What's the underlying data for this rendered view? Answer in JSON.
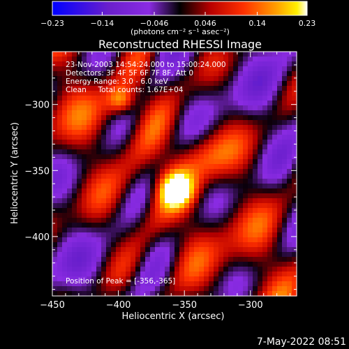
{
  "chart_data": {
    "type": "heatmap",
    "title": "Reconstructed RHESSI Image",
    "xlabel": "Heliocentric X (arcsec)",
    "ylabel": "Heliocentric Y (arcsec)",
    "xlim": [
      -450,
      -265
    ],
    "ylim": [
      -445,
      -260
    ],
    "x_ticks": [
      "−450",
      "−400",
      "−350",
      "−300"
    ],
    "x_tick_values": [
      -450,
      -400,
      -350,
      -300
    ],
    "y_ticks": [
      "−300",
      "−350",
      "−400"
    ],
    "y_tick_values": [
      -300,
      -350,
      -400
    ],
    "colorbar": {
      "ticks": [
        "−0.23",
        "−0.14",
        "−0.046",
        "0.046",
        "0.14",
        "0.23"
      ],
      "tick_values": [
        -0.23,
        -0.14,
        -0.046,
        0.046,
        0.14,
        0.23
      ],
      "range": [
        -0.23,
        0.23
      ],
      "units_line": "(photons cm⁻² s⁻¹ asec⁻²)"
    },
    "annotations": [
      "23-Nov-2003 14:54:24.000 to 15:00:24.000",
      "Detectors: 3F 4F 5F 6F 7F 8F, Att 0",
      "Energy Range: 3.0 - 6.0 keV",
      "Clean     Total counts: 1.67E+04"
    ],
    "peak_label": "Position of Peak = [-356,-365]",
    "peak_position": [
      -356,
      -365
    ],
    "colors": {
      "background": "#000000",
      "colormap": [
        "#0000ff",
        "#a020f0",
        "#000000",
        "#c00000",
        "#ff6000",
        "#ffd000",
        "#ffffff"
      ]
    }
  },
  "footer": {
    "timestamp": "7-May-2022 08:51"
  }
}
